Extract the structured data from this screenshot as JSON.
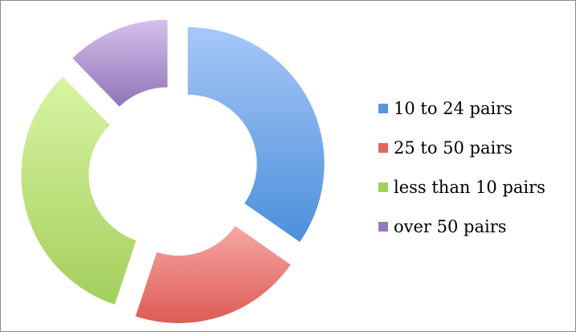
{
  "chart_data": {
    "type": "pie",
    "variant": "exploded-doughnut",
    "title": "",
    "categories": [
      "10 to 24 pairs",
      "25 to 50 pairs",
      "less than 10 pairs",
      "over 50 pairs"
    ],
    "series": [
      {
        "values": [
          34,
          20,
          32,
          12
        ]
      }
    ],
    "colors": [
      {
        "light": "#a6c8f7",
        "dark": "#4d8fdb"
      },
      {
        "light": "#f5a7a4",
        "dark": "#dd5b55"
      },
      {
        "light": "#d9f4a4",
        "dark": "#a3cf5c"
      },
      {
        "light": "#d6c0ea",
        "dark": "#9074b9"
      }
    ],
    "legend": {
      "position": "right",
      "items": [
        {
          "label": "10 to 24 pairs",
          "color": "#5b95dd"
        },
        {
          "label": "25 to 50 pairs",
          "color": "#e06660"
        },
        {
          "label": "less than 10 pairs",
          "color": "#a4d05a"
        },
        {
          "label": "over 50 pairs",
          "color": "#9679bd"
        }
      ]
    }
  }
}
